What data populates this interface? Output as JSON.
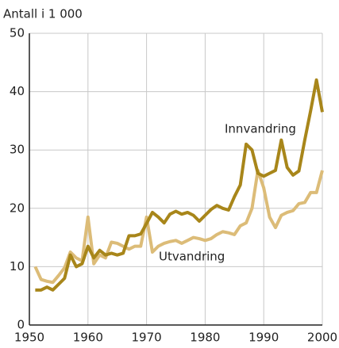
{
  "chart_data": {
    "type": "line",
    "y_axis_label": "Antall i 1 000",
    "x": [
      1951,
      1952,
      1953,
      1954,
      1955,
      1956,
      1957,
      1958,
      1959,
      1960,
      1961,
      1962,
      1963,
      1964,
      1965,
      1966,
      1967,
      1968,
      1969,
      1970,
      1971,
      1972,
      1973,
      1974,
      1975,
      1976,
      1977,
      1978,
      1979,
      1980,
      1981,
      1982,
      1983,
      1984,
      1985,
      1986,
      1987,
      1988,
      1989,
      1990,
      1991,
      1992,
      1993,
      1994,
      1995,
      1996,
      1997,
      1998,
      1999,
      2000
    ],
    "series": [
      {
        "name": "Innvandring",
        "color": "#a8861a",
        "values": [
          6,
          6,
          6.5,
          6,
          7,
          8,
          12,
          10,
          10.5,
          13.5,
          11.5,
          12.8,
          12,
          12.3,
          12,
          12.3,
          15.3,
          15.3,
          15.6,
          17.4,
          19.3,
          18.5,
          17.5,
          19,
          19.5,
          19,
          19.3,
          18.8,
          17.8,
          18.8,
          19.8,
          20.5,
          20,
          19.7,
          22,
          24,
          31,
          30,
          26,
          25.5,
          26,
          26.5,
          31.7,
          27,
          25.7,
          26.4,
          31.7,
          36.7,
          42,
          36.5
        ]
      },
      {
        "name": "Utvandring",
        "color": "#dcbc78",
        "values": [
          10,
          7.8,
          7.5,
          7.3,
          8.5,
          9.8,
          12.5,
          11.5,
          11,
          18.5,
          10.5,
          12,
          11.5,
          14.2,
          14,
          13.5,
          13,
          13.5,
          13.5,
          18.5,
          12.5,
          13.5,
          14,
          14.3,
          14.5,
          14,
          14.5,
          15,
          14.8,
          14.5,
          14.8,
          15.5,
          16,
          15.8,
          15.5,
          17,
          17.5,
          20,
          26.5,
          23.5,
          18.5,
          16.7,
          18.8,
          19.3,
          19.6,
          20.8,
          21,
          22.7,
          22.7,
          26.5
        ]
      }
    ],
    "xlim": [
      1950,
      2000
    ],
    "xticks": [
      1950,
      1960,
      1970,
      1980,
      1990,
      2000
    ],
    "ylim": [
      0,
      50
    ],
    "yticks": [
      0,
      10,
      20,
      30,
      40,
      50
    ],
    "grid": true
  }
}
